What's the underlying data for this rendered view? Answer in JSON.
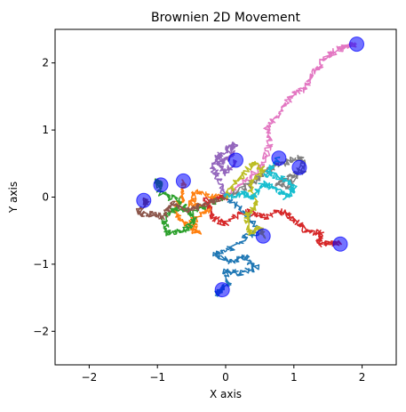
{
  "chart_data": {
    "type": "line",
    "title": "Brownien 2D Movement",
    "xlabel": "X axis",
    "ylabel": "Y axis",
    "xlim": [
      -2.5,
      2.5
    ],
    "ylim": [
      -2.5,
      2.5
    ],
    "xticks": [
      "−2",
      "−1",
      "0",
      "1",
      "2"
    ],
    "yticks": [
      "−2",
      "−1",
      "0",
      "1",
      "2"
    ],
    "grid": false,
    "start": [
      0,
      0
    ],
    "endpoint_marker_color": "#0000ff",
    "series": [
      {
        "color": "#1f77b4",
        "points": [
          [
            0,
            0
          ],
          [
            0.3,
            -0.25
          ],
          [
            0.5,
            -0.5
          ],
          [
            0.3,
            -0.6
          ],
          [
            0.1,
            -0.75
          ],
          [
            -0.15,
            -0.85
          ],
          [
            0.05,
            -0.95
          ],
          [
            0.3,
            -0.9
          ],
          [
            0.45,
            -1.05
          ],
          [
            0.2,
            -1.15
          ],
          [
            0.0,
            -1.1
          ],
          [
            0.05,
            -1.3
          ],
          [
            -0.15,
            -1.45
          ],
          [
            -0.05,
            -1.38
          ]
        ]
      },
      {
        "color": "#ff7f0e",
        "points": [
          [
            0,
            0
          ],
          [
            -0.2,
            0.0
          ],
          [
            -0.45,
            0.1
          ],
          [
            -0.5,
            -0.1
          ],
          [
            -0.25,
            -0.2
          ],
          [
            -0.5,
            -0.35
          ],
          [
            -0.4,
            -0.55
          ],
          [
            -0.6,
            -0.4
          ],
          [
            -0.75,
            -0.2
          ],
          [
            -0.6,
            0.05
          ],
          [
            -0.62,
            0.24
          ]
        ]
      },
      {
        "color": "#2ca02c",
        "points": [
          [
            0,
            0
          ],
          [
            -0.25,
            -0.1
          ],
          [
            -0.5,
            -0.25
          ],
          [
            -0.7,
            -0.15
          ],
          [
            -0.9,
            -0.3
          ],
          [
            -0.85,
            -0.55
          ],
          [
            -0.6,
            -0.5
          ],
          [
            -0.45,
            -0.35
          ],
          [
            -0.7,
            -0.05
          ],
          [
            -0.95,
            0.05
          ],
          [
            -1.0,
            0.25
          ],
          [
            -0.95,
            0.18
          ]
        ]
      },
      {
        "color": "#d62728",
        "points": [
          [
            0,
            0
          ],
          [
            -0.3,
            -0.05
          ],
          [
            -0.2,
            -0.3
          ],
          [
            0.0,
            -0.4
          ],
          [
            0.3,
            -0.2
          ],
          [
            0.6,
            -0.3
          ],
          [
            0.85,
            -0.2
          ],
          [
            1.0,
            -0.35
          ],
          [
            1.2,
            -0.5
          ],
          [
            1.4,
            -0.55
          ],
          [
            1.35,
            -0.7
          ],
          [
            1.55,
            -0.68
          ],
          [
            1.68,
            -0.7
          ]
        ]
      },
      {
        "color": "#9467bd",
        "points": [
          [
            0,
            0
          ],
          [
            -0.1,
            0.25
          ],
          [
            -0.2,
            0.45
          ],
          [
            -0.1,
            0.6
          ],
          [
            0.05,
            0.75
          ],
          [
            0.15,
            0.8
          ],
          [
            0.05,
            0.6
          ],
          [
            -0.1,
            0.5
          ],
          [
            0.0,
            0.35
          ],
          [
            0.15,
            0.55
          ]
        ]
      },
      {
        "color": "#8c564b",
        "points": [
          [
            0,
            0
          ],
          [
            -0.3,
            -0.1
          ],
          [
            -0.55,
            -0.2
          ],
          [
            -0.8,
            -0.1
          ],
          [
            -0.9,
            -0.3
          ],
          [
            -1.1,
            -0.25
          ],
          [
            -1.3,
            -0.25
          ],
          [
            -1.15,
            -0.1
          ],
          [
            -1.2,
            -0.05
          ]
        ]
      },
      {
        "color": "#e377c2",
        "points": [
          [
            0,
            0
          ],
          [
            0.3,
            0.25
          ],
          [
            0.55,
            0.5
          ],
          [
            0.65,
            0.8
          ],
          [
            0.6,
            1.05
          ],
          [
            0.8,
            1.25
          ],
          [
            0.95,
            1.5
          ],
          [
            1.15,
            1.6
          ],
          [
            1.3,
            1.85
          ],
          [
            1.45,
            2.05
          ],
          [
            1.65,
            2.2
          ],
          [
            1.8,
            2.25
          ],
          [
            1.92,
            2.28
          ]
        ]
      },
      {
        "color": "#7f7f7f",
        "points": [
          [
            0,
            0
          ],
          [
            0.3,
            0.15
          ],
          [
            0.5,
            0.3
          ],
          [
            0.7,
            0.45
          ],
          [
            0.95,
            0.55
          ],
          [
            1.1,
            0.6
          ],
          [
            1.15,
            0.4
          ],
          [
            0.95,
            0.3
          ],
          [
            0.75,
            0.2
          ],
          [
            0.95,
            0.15
          ],
          [
            1.08,
            0.44
          ]
        ]
      },
      {
        "color": "#bcbd22",
        "points": [
          [
            0,
            0
          ],
          [
            0.2,
            0.3
          ],
          [
            0.4,
            0.5
          ],
          [
            0.55,
            0.4
          ],
          [
            0.35,
            0.2
          ],
          [
            0.45,
            -0.1
          ],
          [
            0.3,
            -0.3
          ],
          [
            0.35,
            -0.55
          ],
          [
            0.5,
            -0.45
          ],
          [
            0.55,
            -0.58
          ]
        ]
      },
      {
        "color": "#17becf",
        "points": [
          [
            0,
            0
          ],
          [
            0.25,
            0.05
          ],
          [
            0.4,
            0.0
          ],
          [
            0.55,
            0.2
          ],
          [
            0.75,
            0.1
          ],
          [
            0.9,
            0.0
          ],
          [
            1.0,
            0.15
          ],
          [
            0.8,
            0.3
          ],
          [
            0.6,
            0.35
          ],
          [
            0.78,
            0.58
          ]
        ]
      }
    ]
  }
}
